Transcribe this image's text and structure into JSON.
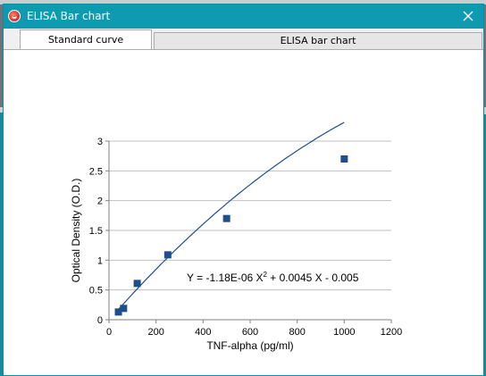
{
  "window": {
    "title": "ELISA Bar chart",
    "close_glyph": "✕"
  },
  "tabs": [
    {
      "label": "Standard curve",
      "active": true
    },
    {
      "label": "ELISA bar chart",
      "active": false
    }
  ],
  "colors": {
    "titlebar": "#0e9bb1",
    "marker": "#1f4e8c",
    "curve": "#1f4e8c",
    "grid": "#c0c0c0"
  },
  "chart_data": {
    "type": "scatter",
    "xlabel": "TNF-alpha (pg/ml)",
    "ylabel": "Optical Density (O.D.)",
    "xlim": [
      0,
      1200
    ],
    "ylim": [
      0,
      3
    ],
    "xticks": [
      "0",
      "200",
      "400",
      "600",
      "800",
      "1000",
      "1200"
    ],
    "yticks": [
      "0",
      "0.5",
      "1",
      "1.5",
      "2",
      "2.5",
      "3"
    ],
    "grid": "horizontal",
    "points": [
      {
        "x": 40,
        "y": 0.13
      },
      {
        "x": 62,
        "y": 0.19
      },
      {
        "x": 120,
        "y": 0.61
      },
      {
        "x": 250,
        "y": 1.09
      },
      {
        "x": 500,
        "y": 1.7
      },
      {
        "x": 1000,
        "y": 2.7
      }
    ],
    "trendline": {
      "type": "polynomial-2",
      "a": -1.18e-06,
      "b": 0.0045,
      "c": -0.005,
      "x_from": 40,
      "x_to": 1000
    },
    "equation": {
      "prefix": "Y = -1.18E-06 X",
      "sup": "2",
      "suffix": " +  0.0045 X - 0.005"
    }
  }
}
